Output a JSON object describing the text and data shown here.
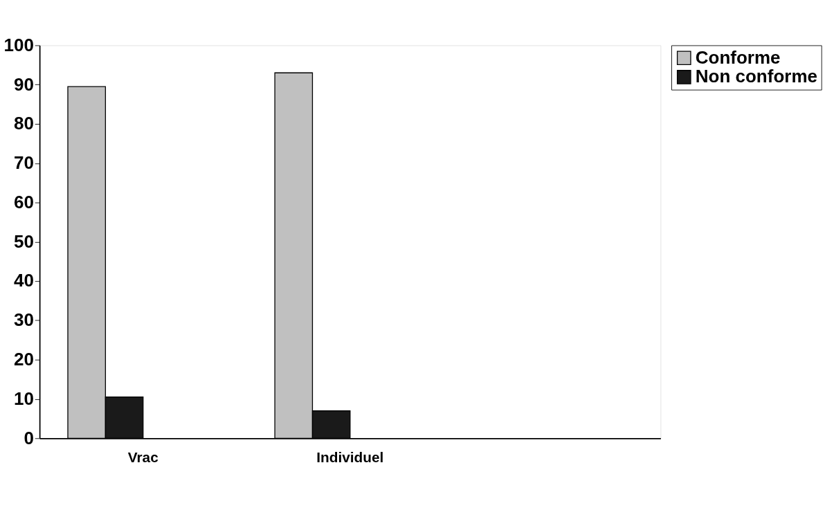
{
  "chart_data": {
    "type": "bar",
    "categories": [
      "Vrac",
      "Individuel",
      null
    ],
    "series": [
      {
        "name": "Conforme",
        "color": "#c0c0c0",
        "values": [
          89.5,
          93,
          null
        ]
      },
      {
        "name": "Non conforme",
        "color": "#1a1a1a",
        "values": [
          10.5,
          7,
          null
        ]
      }
    ],
    "ylim": [
      0,
      100
    ],
    "yticks": [
      0,
      10,
      20,
      30,
      40,
      50,
      60,
      70,
      80,
      90,
      100
    ],
    "grid": false,
    "legend": "right"
  }
}
